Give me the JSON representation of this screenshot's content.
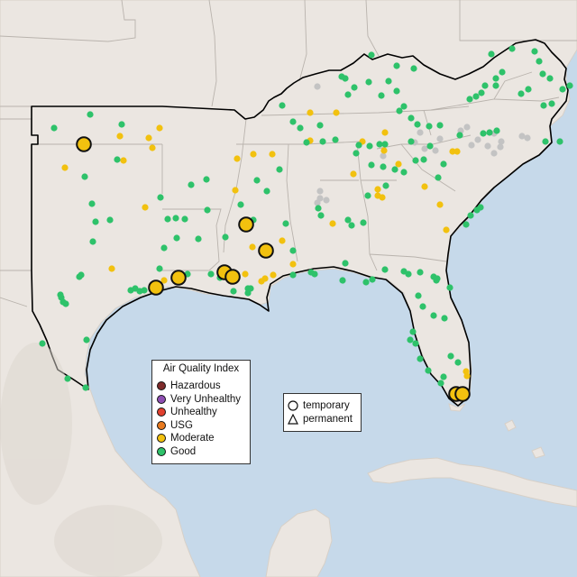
{
  "legend": {
    "title": "Air Quality Index",
    "categories": [
      {
        "label": "Hazardous",
        "color": "#7e2b2b"
      },
      {
        "label": "Very Unhealthy",
        "color": "#8e4fb3"
      },
      {
        "label": "Unhealthy",
        "color": "#e1402f"
      },
      {
        "label": "USG",
        "color": "#e87a1f"
      },
      {
        "label": "Moderate",
        "color": "#f2c10f"
      },
      {
        "label": "Good",
        "color": "#2ec26a"
      }
    ]
  },
  "site_type_legend": {
    "temporary": "temporary",
    "permanent": "permanent"
  },
  "colors": {
    "ocean": "#c6d9ea",
    "land": "#ebe6e1",
    "state_border": "#b9b3ad",
    "region_outline": "#000000",
    "no_data": "#c3c3c3"
  },
  "monitors": {
    "good": [
      [
        100,
        127
      ],
      [
        60,
        142
      ],
      [
        135,
        138
      ],
      [
        130,
        177
      ],
      [
        94,
        196
      ],
      [
        178,
        219
      ],
      [
        102,
        226
      ],
      [
        106,
        246
      ],
      [
        122,
        244
      ],
      [
        103,
        268
      ],
      [
        90,
        305
      ],
      [
        88,
        307
      ],
      [
        68,
        330
      ],
      [
        70,
        335
      ],
      [
        73,
        337
      ],
      [
        67,
        327
      ],
      [
        47,
        381
      ],
      [
        96,
        377
      ],
      [
        75,
        420
      ],
      [
        95,
        430
      ],
      [
        150,
        320
      ],
      [
        145,
        322
      ],
      [
        160,
        322
      ],
      [
        155,
        323
      ],
      [
        182,
        275
      ],
      [
        195,
        242
      ],
      [
        186,
        243
      ],
      [
        205,
        243
      ],
      [
        230,
        233
      ],
      [
        220,
        265
      ],
      [
        177,
        298
      ],
      [
        208,
        304
      ],
      [
        234,
        304
      ],
      [
        244,
        308
      ],
      [
        250,
        263
      ],
      [
        281,
        244
      ],
      [
        275,
        320
      ],
      [
        278,
        320
      ],
      [
        259,
        323
      ],
      [
        275,
        325
      ],
      [
        313,
        117
      ],
      [
        325,
        135
      ],
      [
        333,
        142
      ],
      [
        355,
        139
      ],
      [
        340,
        158
      ],
      [
        358,
        157
      ],
      [
        372,
        155
      ],
      [
        395,
        170
      ],
      [
        398,
        161
      ],
      [
        410,
        162
      ],
      [
        421,
        160
      ],
      [
        427,
        160
      ],
      [
        412,
        183
      ],
      [
        425,
        185
      ],
      [
        438,
        188
      ],
      [
        448,
        191
      ],
      [
        486,
        197
      ],
      [
        492,
        182
      ],
      [
        470,
        177
      ],
      [
        461,
        178
      ],
      [
        428,
        206
      ],
      [
        408,
        217
      ],
      [
        353,
        231
      ],
      [
        403,
        247
      ],
      [
        317,
        248
      ],
      [
        356,
        239
      ],
      [
        386,
        244
      ],
      [
        390,
        250
      ],
      [
        325,
        278
      ],
      [
        383,
        292
      ],
      [
        345,
        302
      ],
      [
        349,
        304
      ],
      [
        325,
        305
      ],
      [
        380,
        311
      ],
      [
        406,
        313
      ],
      [
        427,
        299
      ],
      [
        413,
        310
      ],
      [
        448,
        301
      ],
      [
        453,
        304
      ],
      [
        466,
        302
      ],
      [
        481,
        307
      ],
      [
        484,
        311
      ],
      [
        485,
        309
      ],
      [
        499,
        319
      ],
      [
        464,
        328
      ],
      [
        469,
        340
      ],
      [
        481,
        350
      ],
      [
        493,
        353
      ],
      [
        458,
        368
      ],
      [
        455,
        377
      ],
      [
        461,
        381
      ],
      [
        466,
        398
      ],
      [
        500,
        395
      ],
      [
        508,
        402
      ],
      [
        475,
        411
      ],
      [
        492,
        418
      ],
      [
        489,
        425
      ],
      [
        522,
        239
      ],
      [
        529,
        233
      ],
      [
        533,
        230
      ],
      [
        517,
        249
      ],
      [
        412,
        61
      ],
      [
        379,
        85
      ],
      [
        383,
        87
      ],
      [
        393,
        97
      ],
      [
        409,
        91
      ],
      [
        431,
        90
      ],
      [
        440,
        101
      ],
      [
        459,
        76
      ],
      [
        440,
        73
      ],
      [
        423,
        106
      ],
      [
        448,
        118
      ],
      [
        443,
        123
      ],
      [
        456,
        131
      ],
      [
        463,
        138
      ],
      [
        476,
        140
      ],
      [
        488,
        139
      ],
      [
        456,
        157
      ],
      [
        477,
        162
      ],
      [
        510,
        150
      ],
      [
        536,
        148
      ],
      [
        543,
        147
      ],
      [
        551,
        145
      ],
      [
        521,
        110
      ],
      [
        528,
        107
      ],
      [
        534,
        103
      ],
      [
        538,
        95
      ],
      [
        550,
        87
      ],
      [
        557,
        80
      ],
      [
        545,
        60
      ],
      [
        568,
        54
      ],
      [
        593,
        57
      ],
      [
        598,
        68
      ],
      [
        602,
        82
      ],
      [
        610,
        87
      ],
      [
        586,
        99
      ],
      [
        603,
        117
      ],
      [
        612,
        115
      ],
      [
        624,
        99
      ],
      [
        632,
        95
      ],
      [
        605,
        157
      ],
      [
        621,
        157
      ],
      [
        578,
        104
      ],
      [
        550,
        95
      ],
      [
        386,
        105
      ],
      [
        310,
        188
      ],
      [
        267,
        227
      ],
      [
        285,
        200
      ],
      [
        296,
        212
      ],
      [
        229,
        199
      ],
      [
        212,
        205
      ],
      [
        196,
        264
      ]
    ],
    "moderate": [
      [
        177,
        142
      ],
      [
        165,
        153
      ],
      [
        169,
        164
      ],
      [
        137,
        178
      ],
      [
        72,
        186
      ],
      [
        161,
        230
      ],
      [
        124,
        298
      ],
      [
        182,
        311
      ],
      [
        272,
        304
      ],
      [
        294,
        309
      ],
      [
        290,
        312
      ],
      [
        303,
        305
      ],
      [
        325,
        293
      ],
      [
        261,
        211
      ],
      [
        302,
        171
      ],
      [
        281,
        171
      ],
      [
        344,
        125
      ],
      [
        373,
        125
      ],
      [
        344,
        156
      ],
      [
        392,
        193
      ],
      [
        402,
        157
      ],
      [
        427,
        147
      ],
      [
        426,
        167
      ],
      [
        442,
        182
      ],
      [
        419,
        210
      ],
      [
        419,
        217
      ],
      [
        424,
        219
      ],
      [
        471,
        207
      ],
      [
        488,
        227
      ],
      [
        495,
        255
      ],
      [
        369,
        248
      ],
      [
        280,
        274
      ],
      [
        313,
        267
      ],
      [
        502,
        168
      ],
      [
        507,
        168
      ],
      [
        517,
        412
      ],
      [
        518,
        417
      ],
      [
        133,
        151
      ],
      [
        263,
        176
      ]
    ],
    "nodata": [
      [
        352,
        96
      ],
      [
        355,
        212
      ],
      [
        355,
        220
      ],
      [
        362,
        222
      ],
      [
        352,
        225
      ],
      [
        466,
        147
      ],
      [
        471,
        165
      ],
      [
        460,
        158
      ],
      [
        483,
        167
      ],
      [
        488,
        154
      ],
      [
        511,
        145
      ],
      [
        518,
        141
      ],
      [
        523,
        161
      ],
      [
        530,
        155
      ],
      [
        541,
        162
      ],
      [
        555,
        163
      ],
      [
        556,
        157
      ],
      [
        548,
        148
      ],
      [
        579,
        151
      ],
      [
        585,
        153
      ],
      [
        548,
        170
      ],
      [
        425,
        173
      ]
    ],
    "moderate_large": [
      [
        93,
        160
      ],
      [
        273,
        249
      ],
      [
        295,
        278
      ],
      [
        249,
        302
      ],
      [
        258,
        307
      ],
      [
        198,
        308
      ],
      [
        173,
        319
      ],
      [
        506,
        437
      ],
      [
        513,
        437
      ]
    ]
  }
}
